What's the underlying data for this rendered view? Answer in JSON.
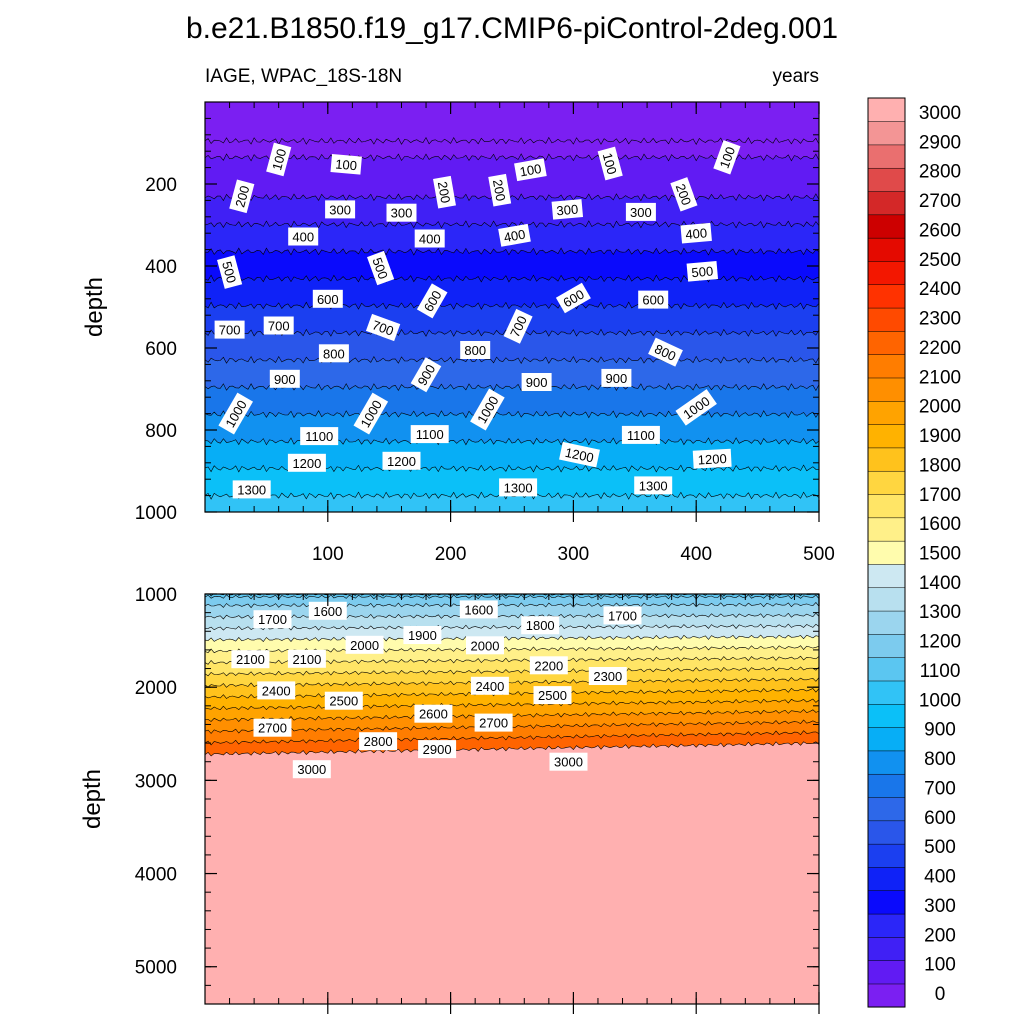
{
  "chart_data": {
    "type": "heatmap",
    "title": "b.e21.B1850.f19_g17.CMIP6-piControl-2deg.001",
    "variable_label": "IAGE, WPAC_18S-18N",
    "units_label": "years",
    "ylabel": "depth",
    "x_ticks": [
      "100",
      "200",
      "300",
      "400",
      "500"
    ],
    "xlim": [
      0,
      500
    ],
    "panels": [
      {
        "name": "upper",
        "ylim": [
          0,
          1000
        ],
        "y_ticks": [
          200,
          400,
          600,
          800,
          1000
        ],
        "y_tick_labels": [
          "200",
          "400",
          "600",
          "800",
          "1000"
        ],
        "contour_labels": [
          {
            "t": "100",
            "x": 60,
            "y": 140,
            "r": -75
          },
          {
            "t": "100",
            "x": 115,
            "y": 152,
            "r": 5
          },
          {
            "t": "100",
            "x": 265,
            "y": 165,
            "r": -10
          },
          {
            "t": "100",
            "x": 330,
            "y": 150,
            "r": 75
          },
          {
            "t": "100",
            "x": 425,
            "y": 135,
            "r": -70
          },
          {
            "t": "200",
            "x": 30,
            "y": 230,
            "r": -75
          },
          {
            "t": "200",
            "x": 195,
            "y": 220,
            "r": 80
          },
          {
            "t": "200",
            "x": 240,
            "y": 215,
            "r": 80
          },
          {
            "t": "200",
            "x": 390,
            "y": 225,
            "r": 70
          },
          {
            "t": "300",
            "x": 110,
            "y": 262,
            "r": 0
          },
          {
            "t": "300",
            "x": 160,
            "y": 270,
            "r": 0
          },
          {
            "t": "300",
            "x": 295,
            "y": 262,
            "r": -5
          },
          {
            "t": "300",
            "x": 355,
            "y": 268,
            "r": 0
          },
          {
            "t": "400",
            "x": 80,
            "y": 328,
            "r": 0
          },
          {
            "t": "400",
            "x": 183,
            "y": 333,
            "r": 0
          },
          {
            "t": "400",
            "x": 252,
            "y": 325,
            "r": -10
          },
          {
            "t": "400",
            "x": 400,
            "y": 320,
            "r": -5
          },
          {
            "t": "500",
            "x": 20,
            "y": 415,
            "r": 75
          },
          {
            "t": "500",
            "x": 143,
            "y": 405,
            "r": 70
          },
          {
            "t": "500",
            "x": 405,
            "y": 413,
            "r": -5
          },
          {
            "t": "600",
            "x": 100,
            "y": 480,
            "r": 0
          },
          {
            "t": "600",
            "x": 185,
            "y": 485,
            "r": -60
          },
          {
            "t": "600",
            "x": 300,
            "y": 478,
            "r": -30
          },
          {
            "t": "600",
            "x": 365,
            "y": 482,
            "r": 0
          },
          {
            "t": "700",
            "x": 20,
            "y": 555,
            "r": 0
          },
          {
            "t": "700",
            "x": 60,
            "y": 545,
            "r": 0
          },
          {
            "t": "700",
            "x": 145,
            "y": 550,
            "r": 20
          },
          {
            "t": "700",
            "x": 255,
            "y": 547,
            "r": -65
          },
          {
            "t": "800",
            "x": 105,
            "y": 613,
            "r": 0
          },
          {
            "t": "800",
            "x": 220,
            "y": 605,
            "r": 0
          },
          {
            "t": "800",
            "x": 375,
            "y": 610,
            "r": 25
          },
          {
            "t": "900",
            "x": 65,
            "y": 675,
            "r": 0
          },
          {
            "t": "900",
            "x": 180,
            "y": 665,
            "r": -60
          },
          {
            "t": "900",
            "x": 270,
            "y": 683,
            "r": 0
          },
          {
            "t": "900",
            "x": 335,
            "y": 673,
            "r": 0
          },
          {
            "t": "1000",
            "x": 25,
            "y": 760,
            "r": -60
          },
          {
            "t": "1000",
            "x": 135,
            "y": 760,
            "r": -60
          },
          {
            "t": "1000",
            "x": 230,
            "y": 750,
            "r": -60
          },
          {
            "t": "1000",
            "x": 400,
            "y": 745,
            "r": -35
          },
          {
            "t": "1100",
            "x": 93,
            "y": 815,
            "r": 0
          },
          {
            "t": "1100",
            "x": 183,
            "y": 810,
            "r": 0
          },
          {
            "t": "1100",
            "x": 355,
            "y": 812,
            "r": 0
          },
          {
            "t": "1200",
            "x": 83,
            "y": 880,
            "r": 0
          },
          {
            "t": "1200",
            "x": 160,
            "y": 875,
            "r": 0
          },
          {
            "t": "1200",
            "x": 305,
            "y": 860,
            "r": 12
          },
          {
            "t": "1200",
            "x": 413,
            "y": 870,
            "r": -3
          },
          {
            "t": "1300",
            "x": 38,
            "y": 945,
            "r": 0
          },
          {
            "t": "1300",
            "x": 255,
            "y": 940,
            "r": 0
          },
          {
            "t": "1300",
            "x": 365,
            "y": 935,
            "r": 0
          }
        ]
      },
      {
        "name": "lower",
        "ylim": [
          1000,
          5400
        ],
        "y_ticks": [
          1000,
          2000,
          3000,
          4000,
          5000
        ],
        "y_tick_labels": [
          "1000",
          "2000",
          "3000",
          "4000",
          "5000"
        ],
        "contour_labels": [
          {
            "t": "1700",
            "x": 55,
            "y": 1270,
            "r": 0
          },
          {
            "t": "1600",
            "x": 100,
            "y": 1180,
            "r": 0
          },
          {
            "t": "1600",
            "x": 223,
            "y": 1165,
            "r": 0
          },
          {
            "t": "1800",
            "x": 273,
            "y": 1335,
            "r": 0
          },
          {
            "t": "1700",
            "x": 340,
            "y": 1230,
            "r": 0
          },
          {
            "t": "2100",
            "x": 37,
            "y": 1700,
            "r": 0
          },
          {
            "t": "2100",
            "x": 83,
            "y": 1695,
            "r": 0
          },
          {
            "t": "2000",
            "x": 130,
            "y": 1545,
            "r": 0
          },
          {
            "t": "1900",
            "x": 177,
            "y": 1440,
            "r": 0
          },
          {
            "t": "2000",
            "x": 228,
            "y": 1550,
            "r": 0
          },
          {
            "t": "2200",
            "x": 280,
            "y": 1765,
            "r": 0
          },
          {
            "t": "2300",
            "x": 328,
            "y": 1880,
            "r": 0
          },
          {
            "t": "2400",
            "x": 58,
            "y": 2035,
            "r": 0
          },
          {
            "t": "2500",
            "x": 113,
            "y": 2145,
            "r": 0
          },
          {
            "t": "2400",
            "x": 232,
            "y": 1985,
            "r": 0
          },
          {
            "t": "2500",
            "x": 283,
            "y": 2085,
            "r": 0
          },
          {
            "t": "2700",
            "x": 55,
            "y": 2435,
            "r": 0
          },
          {
            "t": "2600",
            "x": 186,
            "y": 2285,
            "r": 0
          },
          {
            "t": "2700",
            "x": 235,
            "y": 2380,
            "r": 0
          },
          {
            "t": "2800",
            "x": 141,
            "y": 2580,
            "r": 0
          },
          {
            "t": "2900",
            "x": 189,
            "y": 2665,
            "r": 0
          },
          {
            "t": "3000",
            "x": 87,
            "y": 2880,
            "r": 0
          },
          {
            "t": "3000",
            "x": 296,
            "y": 2800,
            "r": 0
          }
        ]
      }
    ],
    "colorbar": {
      "levels": [
        "0",
        "100",
        "200",
        "300",
        "400",
        "500",
        "600",
        "700",
        "800",
        "900",
        "1000",
        "1100",
        "1200",
        "1300",
        "1400",
        "1500",
        "1600",
        "1700",
        "1800",
        "1900",
        "2000",
        "2100",
        "2200",
        "2300",
        "2400",
        "2500",
        "2600",
        "2700",
        "2800",
        "2900",
        "3000"
      ],
      "colors": [
        "#7b1ff2",
        "#611bf3",
        "#4020f5",
        "#2b26f8",
        "#0a0afc",
        "#0f22f7",
        "#1b3ff0",
        "#2a56ea",
        "#2d68e9",
        "#1976ea",
        "#1191f0",
        "#07aef6",
        "#0bc0f8",
        "#31c3f6",
        "#5bc6f1",
        "#7ccbee",
        "#9bd5ee",
        "#b8e0ef",
        "#cde8f2",
        "#fffcad",
        "#fff089",
        "#ffe566",
        "#ffd640",
        "#ffc21c",
        "#ffb200",
        "#ffa300",
        "#ff8f00",
        "#ff7d00",
        "#ff6400",
        "#ff4a00",
        "#ff3200",
        "#f31700",
        "#e40a00",
        "#cd0000",
        "#d42828",
        "#e04a4a",
        "#ea6f6f",
        "#f39595",
        "#ffb0b0"
      ]
    }
  }
}
